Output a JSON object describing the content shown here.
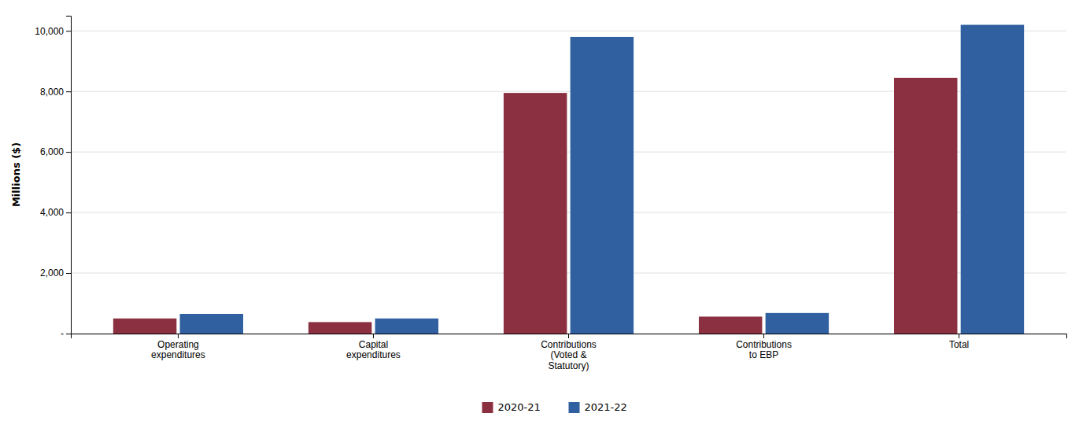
{
  "chart_data": {
    "type": "bar",
    "categories": [
      "Operating\nexpenditures",
      "Capital\nexpenditures",
      "Contributions\n(Voted &\nStatutory)",
      "Contributions\nto EBP",
      "Total"
    ],
    "series": [
      {
        "name": "2020-21",
        "color": "#8B3040",
        "values": [
          500,
          380,
          7950,
          560,
          8450
        ]
      },
      {
        "name": "2021-22",
        "color": "#3060A0",
        "values": [
          650,
          500,
          9800,
          680,
          10200
        ]
      }
    ],
    "ylabel": "Millions ($)",
    "ylim": [
      0,
      10500
    ],
    "yticks": [
      {
        "value": 0,
        "label": "-"
      },
      {
        "value": 2000,
        "label": "2,000"
      },
      {
        "value": 4000,
        "label": "4,000"
      },
      {
        "value": 6000,
        "label": "6,000"
      },
      {
        "value": 8000,
        "label": "8,000"
      },
      {
        "value": 10000,
        "label": "10,000"
      }
    ],
    "grid": true,
    "legend": "bottom"
  }
}
